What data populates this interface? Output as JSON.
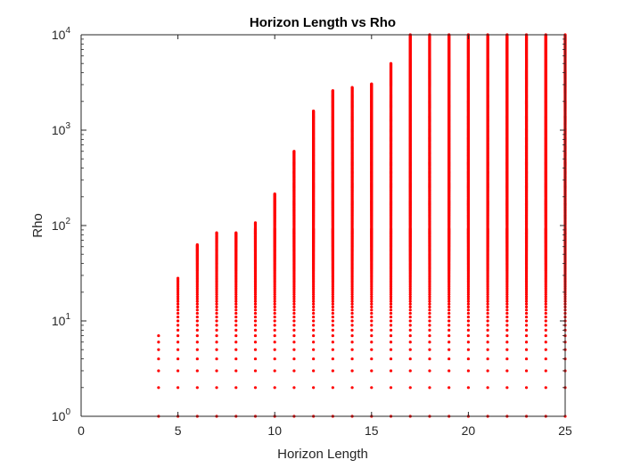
{
  "chart_data": {
    "type": "scatter",
    "title": "Horizon Length vs Rho",
    "xlabel": "Horizon Length",
    "ylabel": "Rho",
    "xlim": [
      0,
      25
    ],
    "ylim": [
      1,
      10000
    ],
    "yscale": "log",
    "xticks": [
      0,
      5,
      10,
      15,
      20,
      25
    ],
    "yticks": [
      {
        "base": "10",
        "exp": "0"
      },
      {
        "base": "10",
        "exp": "1"
      },
      {
        "base": "10",
        "exp": "2"
      },
      {
        "base": "10",
        "exp": "3"
      },
      {
        "base": "10",
        "exp": "4"
      }
    ],
    "grid": false,
    "box": true,
    "marker_color": "#ff0000",
    "series": [
      {
        "points_rule": "integer rho values from 1 to max at each horizon length",
        "x": [
          4,
          5,
          6,
          7,
          8,
          9,
          10,
          11,
          12,
          13,
          14,
          15,
          16,
          17,
          18,
          19,
          20,
          21,
          22,
          23,
          24,
          25
        ],
        "max_rho": [
          7,
          28,
          63,
          84,
          84,
          107,
          215,
          600,
          1590,
          2590,
          2800,
          3050,
          5000,
          10000,
          10000,
          10000,
          10000,
          10000,
          10000,
          10000,
          10000,
          10000
        ]
      }
    ]
  }
}
